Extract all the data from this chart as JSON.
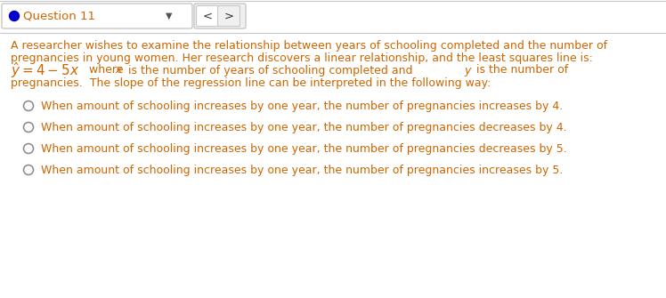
{
  "bg_color": "#ffffff",
  "border_color": "#c8c8c8",
  "header_bg": "#f0f0f0",
  "header_text": "Question 11",
  "header_text_color": "#cc6600",
  "header_dot_color": "#0000cc",
  "body_text_color": "#cc6600",
  "para_line1": "A researcher wishes to examine the relationship between years of schooling completed and the number of",
  "para_line2": "pregnancies in young women. Her research discovers a linear relationship, and the least squares line is:",
  "para_line4": "pregnancies.  The slope of the regression line can be interpreted in the following way:",
  "options": [
    "When amount of schooling increases by one year, the number of pregnancies increases by 4.",
    "When amount of schooling increases by one year, the number of pregnancies decreases by 4.",
    "When amount of schooling increases by one year, the number of pregnancies decreases by 5.",
    "When amount of schooling increases by one year, the number of pregnancies increases by 5."
  ],
  "font_size": 9.0,
  "header_font_size": 9.5,
  "math_font_size": 11.0,
  "radio_color": "#888888",
  "nav_text_color": "#333333"
}
